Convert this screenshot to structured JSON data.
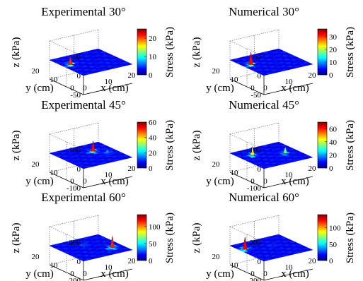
{
  "chart_data": [
    {
      "type": "surface",
      "title": "Experimental 30°",
      "xlabel": "x (cm)",
      "ylabel": "y (cm)",
      "zlabel": "z (kPa)",
      "z_ticks": [
        "50",
        "0",
        "-50"
      ],
      "zlim": [
        -50,
        50
      ],
      "y_ticks": [
        "20",
        "10",
        "0"
      ],
      "x_ticks": [
        "0",
        "10",
        "20"
      ],
      "colorbar": {
        "label": "Stress (kPa)",
        "ticks": [
          "20",
          "10",
          "0"
        ],
        "range": [
          0,
          25
        ]
      },
      "peaks": [
        {
          "x": 3,
          "y": 12,
          "z": 22
        }
      ]
    },
    {
      "type": "surface",
      "title": "Numerical 30°",
      "xlabel": "x (cm)",
      "ylabel": "y (cm)",
      "zlabel": "z (kPa)",
      "z_ticks": [
        "50",
        "0",
        "-50"
      ],
      "zlim": [
        -50,
        50
      ],
      "y_ticks": [
        "20",
        "10",
        "0"
      ],
      "x_ticks": [
        "0",
        "10",
        "20"
      ],
      "colorbar": {
        "label": "Stress (kPa)",
        "ticks": [
          "30",
          "20",
          "10",
          "0"
        ],
        "range": [
          0,
          36
        ]
      },
      "peaks": [
        {
          "x": 3,
          "y": 12,
          "z": 33
        }
      ]
    },
    {
      "type": "surface",
      "title": "Experimental 45°",
      "xlabel": "x (cm)",
      "ylabel": "y (cm)",
      "zlabel": "z (kPa)",
      "z_ticks": [
        "100",
        "0",
        "-100"
      ],
      "zlim": [
        -100,
        100
      ],
      "y_ticks": [
        "20",
        "10",
        "0"
      ],
      "x_ticks": [
        "0",
        "10",
        "20"
      ],
      "colorbar": {
        "label": "Stress (kPa)",
        "ticks": [
          "60",
          "40",
          "20",
          "0"
        ],
        "range": [
          0,
          60
        ]
      },
      "peaks": [
        {
          "x": 13,
          "y": 13,
          "z": 55
        },
        {
          "x": 16,
          "y": 9,
          "z": 18
        }
      ]
    },
    {
      "type": "surface",
      "title": "Numerical 45°",
      "xlabel": "x (cm)",
      "ylabel": "y (cm)",
      "zlabel": "z (kPa)",
      "z_ticks": [
        "100",
        "0",
        "-100"
      ],
      "zlim": [
        -100,
        100
      ],
      "y_ticks": [
        "20",
        "10",
        "0"
      ],
      "x_ticks": [
        "0",
        "10",
        "20"
      ],
      "colorbar": {
        "label": "Stress (kPa)",
        "ticks": [
          "60",
          "40",
          "20",
          "0"
        ],
        "range": [
          0,
          70
        ]
      },
      "peaks": [
        {
          "x": 5,
          "y": 14,
          "z": 45
        },
        {
          "x": 15,
          "y": 9,
          "z": 35
        }
      ]
    },
    {
      "type": "surface",
      "title": "Experimental 60°",
      "xlabel": "x (cm)",
      "ylabel": "y (cm)",
      "zlabel": "z (kPa)",
      "z_ticks": [
        "200",
        "0",
        "-200"
      ],
      "zlim": [
        -200,
        200
      ],
      "y_ticks": [
        "20",
        "10",
        "0"
      ],
      "x_ticks": [
        "0",
        "10",
        "20"
      ],
      "colorbar": {
        "label": "Stress (kPa)",
        "ticks": [
          "100",
          "50",
          "0"
        ],
        "range": [
          0,
          135
        ]
      },
      "peaks": [
        {
          "x": 16,
          "y": 6,
          "z": 120
        },
        {
          "x": 10,
          "y": 14,
          "z": 25
        }
      ]
    },
    {
      "type": "surface",
      "title": "Numerical 60°",
      "xlabel": "x (cm)",
      "ylabel": "y (cm)",
      "zlabel": "z (kPa)",
      "z_ticks": [
        "200",
        "0",
        "-200"
      ],
      "zlim": [
        -200,
        200
      ],
      "y_ticks": [
        "20",
        "10",
        "0"
      ],
      "x_ticks": [
        "0",
        "10",
        "20"
      ],
      "colorbar": {
        "label": "Stress (kPa)",
        "ticks": [
          "100",
          "50",
          "0"
        ],
        "range": [
          0,
          140
        ]
      },
      "peaks": [
        {
          "x": 2,
          "y": 14,
          "z": 130
        },
        {
          "x": 12,
          "y": 12,
          "z": 20
        }
      ]
    }
  ]
}
